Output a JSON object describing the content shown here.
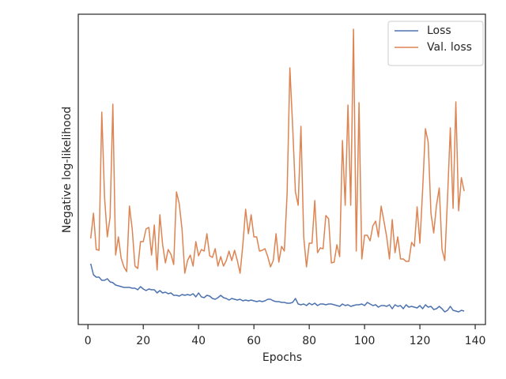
{
  "chart_data": {
    "type": "line",
    "xlabel": "Epochs",
    "ylabel": "Negative log-likelihood",
    "x": [
      1,
      2,
      3,
      4,
      5,
      6,
      7,
      8,
      9,
      10,
      11,
      12,
      13,
      14,
      15,
      16,
      17,
      18,
      19,
      20,
      21,
      22,
      23,
      24,
      25,
      26,
      27,
      28,
      29,
      30,
      31,
      32,
      33,
      34,
      35,
      36,
      37,
      38,
      39,
      40,
      41,
      42,
      43,
      44,
      45,
      46,
      47,
      48,
      49,
      50,
      51,
      52,
      53,
      54,
      55,
      56,
      57,
      58,
      59,
      60,
      61,
      62,
      63,
      64,
      65,
      66,
      67,
      68,
      69,
      70,
      71,
      72,
      73,
      74,
      75,
      76,
      77,
      78,
      79,
      80,
      81,
      82,
      83,
      84,
      85,
      86,
      87,
      88,
      89,
      90,
      91,
      92,
      93,
      94,
      95,
      96,
      97,
      98,
      99,
      100,
      101,
      102,
      103,
      104,
      105,
      106,
      107,
      108,
      109,
      110,
      111,
      112,
      113,
      114,
      115,
      116,
      117,
      118,
      119,
      120,
      121,
      122,
      123,
      124,
      125,
      126,
      127,
      128,
      129,
      130,
      131,
      132,
      133,
      134,
      135,
      136
    ],
    "series": [
      {
        "name": "Loss",
        "color": "#4c72b0",
        "values": [
          77,
          63,
          60,
          60,
          56,
          56,
          58,
          54,
          53,
          50,
          49,
          48,
          47,
          47,
          47,
          46,
          46,
          44,
          48,
          45,
          43,
          45,
          44,
          44,
          40,
          43,
          40,
          41,
          39,
          40,
          37,
          37,
          36,
          38,
          37,
          38,
          37,
          39,
          35,
          40,
          35,
          34,
          37,
          36,
          33,
          32,
          34,
          37,
          34,
          33,
          31,
          33,
          32,
          31,
          32,
          30,
          31,
          30,
          31,
          30,
          29,
          30,
          29,
          30,
          32,
          32,
          30,
          29,
          29,
          28,
          28,
          27,
          27,
          28,
          33,
          26,
          25,
          26,
          24,
          27,
          25,
          27,
          24,
          26,
          26,
          25,
          26,
          26,
          25,
          24,
          23,
          26,
          24,
          25,
          23,
          24,
          25,
          25,
          26,
          24,
          28,
          26,
          24,
          25,
          22,
          24,
          24,
          23,
          25,
          20,
          25,
          23,
          24,
          20,
          25,
          22,
          23,
          22,
          21,
          24,
          20,
          25,
          22,
          23,
          19,
          20,
          23,
          20,
          16,
          18,
          23,
          18,
          17,
          16,
          18,
          17
        ]
      },
      {
        "name": "Val. loss",
        "color": "#dd8452",
        "values": [
          109,
          141,
          95,
          94,
          269,
          161,
          111,
          136,
          279,
          88,
          111,
          84,
          73,
          67,
          150,
          121,
          74,
          71,
          105,
          105,
          121,
          123,
          88,
          126,
          69,
          139,
          101,
          78,
          95,
          89,
          76,
          168,
          153,
          121,
          65,
          81,
          88,
          74,
          105,
          87,
          95,
          93,
          115,
          87,
          85,
          96,
          74,
          86,
          74,
          81,
          93,
          81,
          94,
          81,
          65,
          101,
          146,
          115,
          139,
          111,
          111,
          93,
          94,
          96,
          86,
          73,
          81,
          115,
          79,
          99,
          93,
          166,
          325,
          251,
          168,
          151,
          251,
          111,
          73,
          103,
          103,
          157,
          91,
          97,
          96,
          138,
          134,
          78,
          79,
          101,
          86,
          233,
          151,
          278,
          151,
          374,
          93,
          281,
          83,
          113,
          113,
          106,
          125,
          131,
          111,
          150,
          131,
          111,
          83,
          133,
          91,
          111,
          83,
          83,
          80,
          80,
          104,
          99,
          149,
          103,
          171,
          248,
          231,
          141,
          116,
          151,
          173,
          95,
          81,
          161,
          249,
          147,
          282,
          144,
          186,
          169
        ]
      }
    ],
    "xlim": [
      -3.5,
      143.7
    ],
    "xticks": [
      0,
      20,
      40,
      60,
      80,
      100,
      120,
      140
    ],
    "ylim": [
      0,
      393
    ],
    "legend": "upper right"
  }
}
